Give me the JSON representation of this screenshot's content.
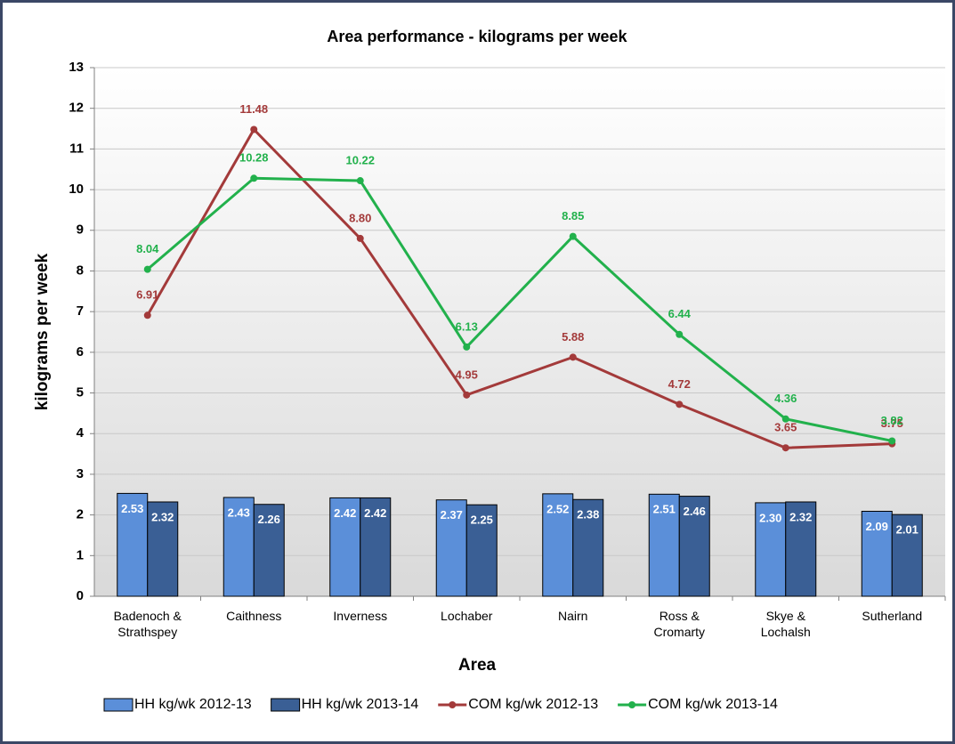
{
  "chart_data": {
    "type": "bar",
    "title": "Area performance - kilograms per week",
    "x_label": "Area",
    "y_label": "kilograms per week",
    "categories": [
      "Badenoch & Strathspey",
      "Caithness",
      "Inverness",
      "Lochaber",
      "Nairn",
      "Ross & Cromarty",
      "Skye & Lochalsh",
      "Sutherland"
    ],
    "series": [
      {
        "name": "HH kg/wk 2012-13",
        "type": "bar",
        "color": "#5b8fd9",
        "values": [
          2.53,
          2.43,
          2.42,
          2.37,
          2.52,
          2.51,
          2.3,
          2.09
        ],
        "value_labels": [
          "2.53",
          "2.43",
          "2.42",
          "2.37",
          "2.52",
          "2.51",
          "2.30",
          "2.09"
        ]
      },
      {
        "name": "HH kg/wk 2013-14",
        "type": "bar",
        "color": "#3a5f95",
        "values": [
          2.32,
          2.26,
          2.42,
          2.25,
          2.38,
          2.46,
          2.32,
          2.01
        ],
        "value_labels": [
          "2.32",
          "2.26",
          "2.42",
          "2.25",
          "2.38",
          "2.46",
          "2.32",
          "2.01"
        ]
      },
      {
        "name": "COM kg/wk 2012-13",
        "type": "line",
        "color": "#a33a3a",
        "values": [
          6.91,
          11.48,
          8.8,
          4.95,
          5.88,
          4.72,
          3.65,
          3.75
        ],
        "value_labels": [
          "6.91",
          "11.48",
          "8.80",
          "4.95",
          "5.88",
          "4.72",
          "3.65",
          "3.75"
        ]
      },
      {
        "name": "COM kg/wk 2013-14",
        "type": "line",
        "color": "#22b14c",
        "values": [
          8.04,
          10.28,
          10.22,
          6.13,
          8.85,
          6.44,
          4.36,
          3.82
        ],
        "value_labels": [
          "8.04",
          "10.28",
          "10.22",
          "6.13",
          "8.85",
          "6.44",
          "4.36",
          "3.82"
        ]
      }
    ],
    "ylim": [
      0,
      13
    ],
    "yticks": [
      0,
      1,
      2,
      3,
      4,
      5,
      6,
      7,
      8,
      9,
      10,
      11,
      12,
      13
    ],
    "grid": true,
    "legend": "bottom"
  }
}
